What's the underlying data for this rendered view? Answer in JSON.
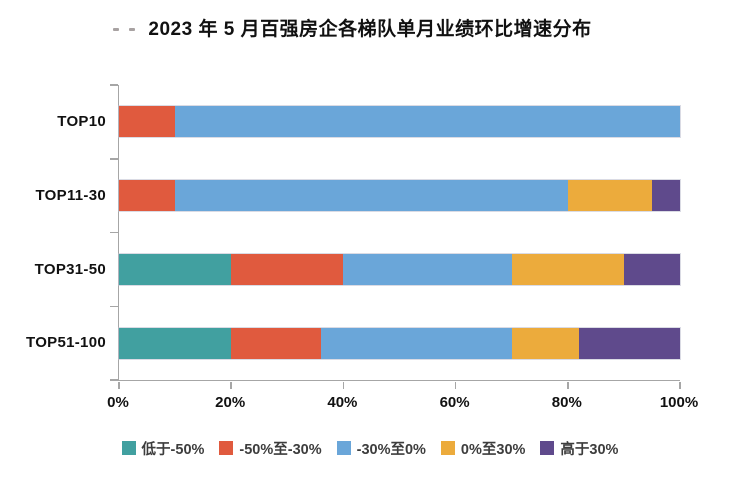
{
  "chart_data": {
    "type": "bar",
    "orientation": "horizontal",
    "stacked": true,
    "title": "2023 年 5 月百强房企各梯队单月业绩环比增速分布",
    "categories": [
      "TOP10",
      "TOP11-30",
      "TOP31-50",
      "TOP51-100"
    ],
    "series": [
      {
        "name": "低于-50%",
        "color": "#41a0a0",
        "values": [
          0,
          0,
          20,
          20
        ]
      },
      {
        "name": "-50%至-30%",
        "color": "#e05a3e",
        "values": [
          10,
          10,
          20,
          16
        ]
      },
      {
        "name": "-30%至0%",
        "color": "#6aa6d9",
        "values": [
          90,
          70,
          30,
          34
        ]
      },
      {
        "name": "0%至30%",
        "color": "#ecab3c",
        "values": [
          0,
          15,
          20,
          12
        ]
      },
      {
        "name": "高于30%",
        "color": "#5f4a8c",
        "values": [
          0,
          5,
          10,
          18
        ]
      }
    ],
    "x_ticks": [
      "0%",
      "20%",
      "40%",
      "60%",
      "80%",
      "100%"
    ],
    "xlim": [
      0,
      100
    ],
    "unit": "%",
    "grid": false,
    "legend_position": "bottom"
  },
  "style": {
    "background": "#ffffff",
    "axis_color": "#a6a6a6",
    "label_color": "#111111",
    "legend_text_color": "#3d3d3d"
  }
}
